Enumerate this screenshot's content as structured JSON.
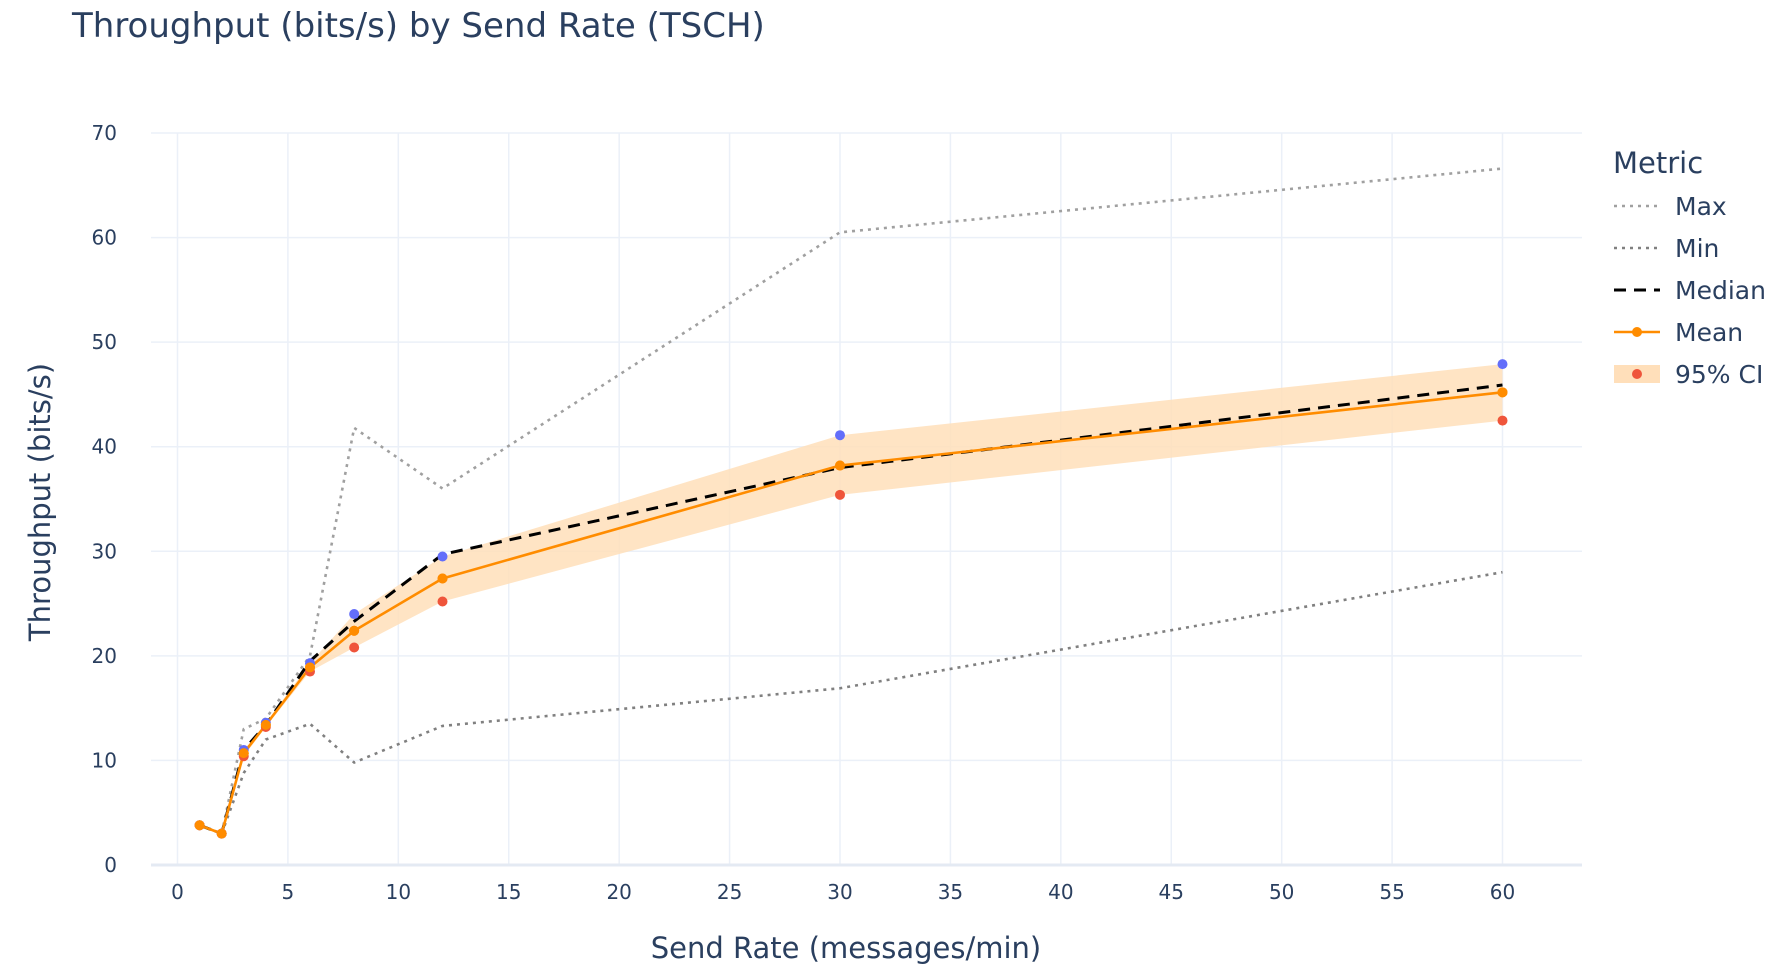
{
  "chart_data": {
    "type": "line",
    "title": "Throughput (bits/s) by Send Rate (TSCH)",
    "xlabel": "Send Rate (messages/min)",
    "ylabel": "Throughput (bits/s)",
    "xlim": [
      -1.2,
      63.6
    ],
    "ylim": [
      0,
      70
    ],
    "x_ticks": [
      0,
      5,
      10,
      15,
      20,
      25,
      30,
      35,
      40,
      45,
      50,
      55,
      60
    ],
    "y_ticks": [
      0,
      10,
      20,
      30,
      40,
      50,
      60,
      70
    ],
    "grid": true,
    "legend": {
      "title": "Metric",
      "position": "right"
    },
    "x": [
      1,
      2,
      3,
      4,
      6,
      8,
      12,
      30,
      60
    ],
    "series": [
      {
        "name": "Max",
        "style": "dotted",
        "color": "#a0a0a0",
        "values": [
          3.8,
          3.0,
          13.0,
          14.0,
          20.0,
          41.8,
          36.0,
          60.5,
          66.6
        ]
      },
      {
        "name": "Min",
        "style": "dotted",
        "color": "#808080",
        "values": [
          3.8,
          3.0,
          8.8,
          12.0,
          13.5,
          9.8,
          13.3,
          16.9,
          28.0
        ]
      },
      {
        "name": "Median",
        "style": "dashed",
        "color": "#000000",
        "values": [
          3.8,
          3.0,
          11.0,
          13.4,
          19.5,
          23.3,
          29.7,
          38.0,
          45.9
        ]
      },
      {
        "name": "Mean",
        "style": "solid-markers",
        "color": "#ff8c00",
        "values": [
          3.8,
          3.0,
          10.7,
          13.4,
          18.9,
          22.4,
          27.4,
          38.2,
          45.2
        ]
      }
    ],
    "ci": {
      "name": "95% CI",
      "fill_color": "#ffdfba",
      "upper_color": "#636efa",
      "lower_color": "#ef553b",
      "upper": [
        3.8,
        3.0,
        11.0,
        13.6,
        19.3,
        24.0,
        29.5,
        41.1,
        47.9
      ],
      "lower": [
        3.8,
        3.0,
        10.4,
        13.2,
        18.5,
        20.8,
        25.2,
        35.4,
        42.5
      ]
    }
  }
}
